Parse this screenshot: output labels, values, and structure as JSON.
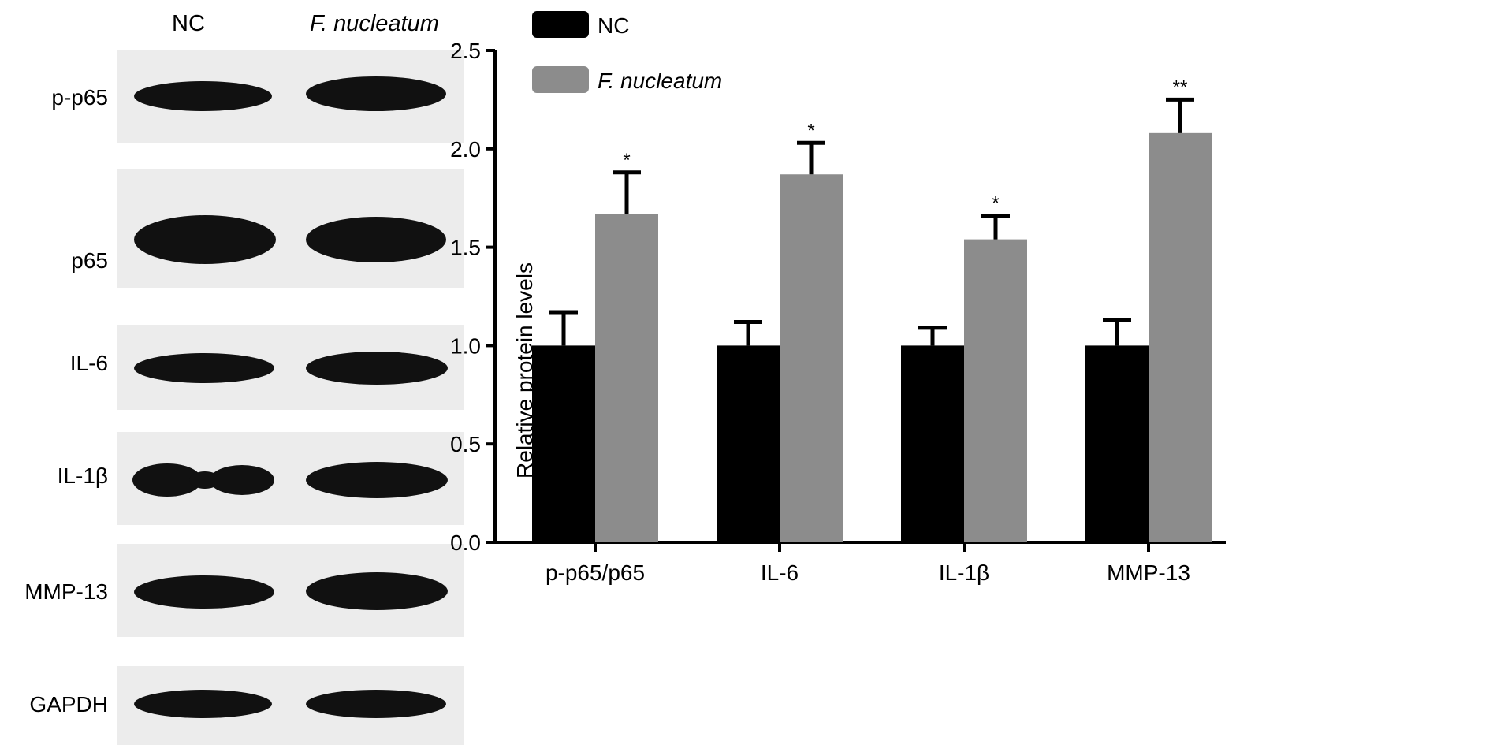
{
  "blot": {
    "lanes": [
      "NC",
      "F. nucleatum"
    ],
    "rows": [
      "p-p65",
      "p65",
      "IL-6",
      "IL-1β",
      "MMP-13",
      "GAPDH"
    ]
  },
  "chart_data": {
    "type": "bar",
    "categories": [
      "p-p65/p65",
      "IL-6",
      "IL-1β",
      "MMP-13"
    ],
    "series": [
      {
        "name": "NC",
        "color": "#000000",
        "values": [
          1.0,
          1.0,
          1.0,
          1.0
        ],
        "errors": [
          0.17,
          0.12,
          0.09,
          0.13
        ]
      },
      {
        "name": "F. nucleatum",
        "color": "#8c8c8c",
        "values": [
          1.67,
          1.87,
          1.54,
          2.08
        ],
        "errors": [
          0.21,
          0.16,
          0.12,
          0.17
        ]
      }
    ],
    "significance": [
      "*",
      "*",
      "*",
      "**"
    ],
    "ylabel": "Relative protein levels",
    "xlabel": "",
    "ylim": [
      0,
      2.5
    ],
    "yticks": [
      "0.0",
      "0.5",
      "1.0",
      "1.5",
      "2.0",
      "2.5"
    ],
    "legend_placement": "top-left",
    "grid": false
  }
}
